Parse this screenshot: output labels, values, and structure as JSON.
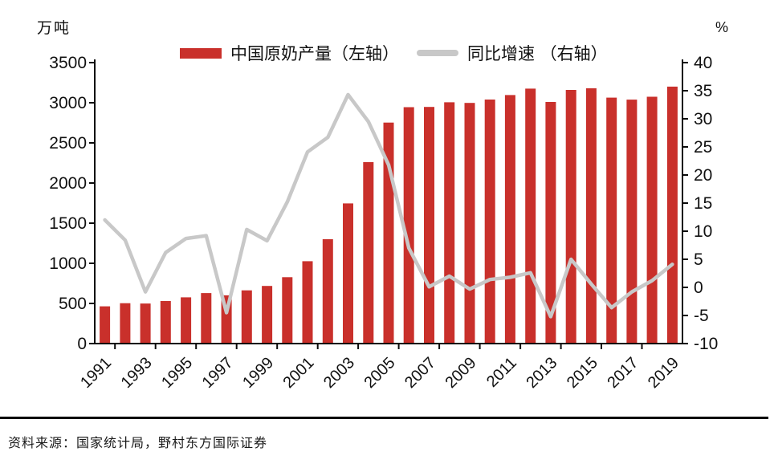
{
  "unit_left": "万吨",
  "unit_right": "%",
  "legend": {
    "bars_label": "中国原奶产量（左轴）",
    "line_label": "同比增速 （右轴）"
  },
  "source": "资料来源：国家统计局，野村东方国际证券",
  "colors": {
    "bar": "#C9302B",
    "line": "#C8C8C8",
    "axis": "#0a0a0a",
    "text": "#111111"
  },
  "chart_data": {
    "type": "bar",
    "subtype": "bar+line dual axis",
    "title": "",
    "xlabel": "",
    "ylabel_left": "万吨",
    "ylabel_right": "%",
    "grid": false,
    "legend_position": "top",
    "categories": [
      1991,
      1992,
      1993,
      1994,
      1995,
      1996,
      1997,
      1998,
      1999,
      2000,
      2001,
      2002,
      2003,
      2004,
      2005,
      2006,
      2007,
      2008,
      2009,
      2010,
      2011,
      2012,
      2013,
      2014,
      2015,
      2016,
      2017,
      2018,
      2019
    ],
    "series": [
      {
        "name": "中国原奶产量（左轴）",
        "type": "bar",
        "axis": "left",
        "unit": "万吨",
        "values": [
          464,
          503,
          499,
          530,
          576,
          629,
          601,
          663,
          718,
          827,
          1026,
          1300,
          1746,
          2261,
          2753,
          2945,
          2948,
          3006,
          2998,
          3040,
          3096,
          3176,
          3010,
          3160,
          3180,
          3064,
          3039,
          3075,
          3201
        ]
      },
      {
        "name": "同比增速 （右轴）",
        "type": "line",
        "axis": "right",
        "unit": "%",
        "values": [
          12.0,
          8.4,
          -0.8,
          6.2,
          8.7,
          9.2,
          -4.5,
          10.3,
          8.3,
          15.2,
          24.1,
          26.7,
          34.3,
          29.5,
          21.8,
          7.0,
          0.1,
          2.0,
          -0.3,
          1.4,
          1.8,
          2.6,
          -5.2,
          5.0,
          0.6,
          -3.6,
          -0.8,
          1.2,
          4.1
        ]
      }
    ],
    "left_axis": {
      "min": 0,
      "max": 3500,
      "step": 500,
      "tick_labels": [
        "0",
        "500",
        "1000",
        "1500",
        "2000",
        "2500",
        "3000",
        "3500"
      ]
    },
    "right_axis": {
      "min": -10,
      "max": 40,
      "step": 5,
      "tick_labels": [
        "-10",
        "-5",
        "0",
        "5",
        "10",
        "15",
        "20",
        "25",
        "30",
        "35",
        "40"
      ]
    },
    "x_tick_labels": [
      "1991",
      "1993",
      "1995",
      "1997",
      "1999",
      "2001",
      "2003",
      "2005",
      "2007",
      "2009",
      "2011",
      "2013",
      "2015",
      "2017",
      "2019"
    ]
  }
}
